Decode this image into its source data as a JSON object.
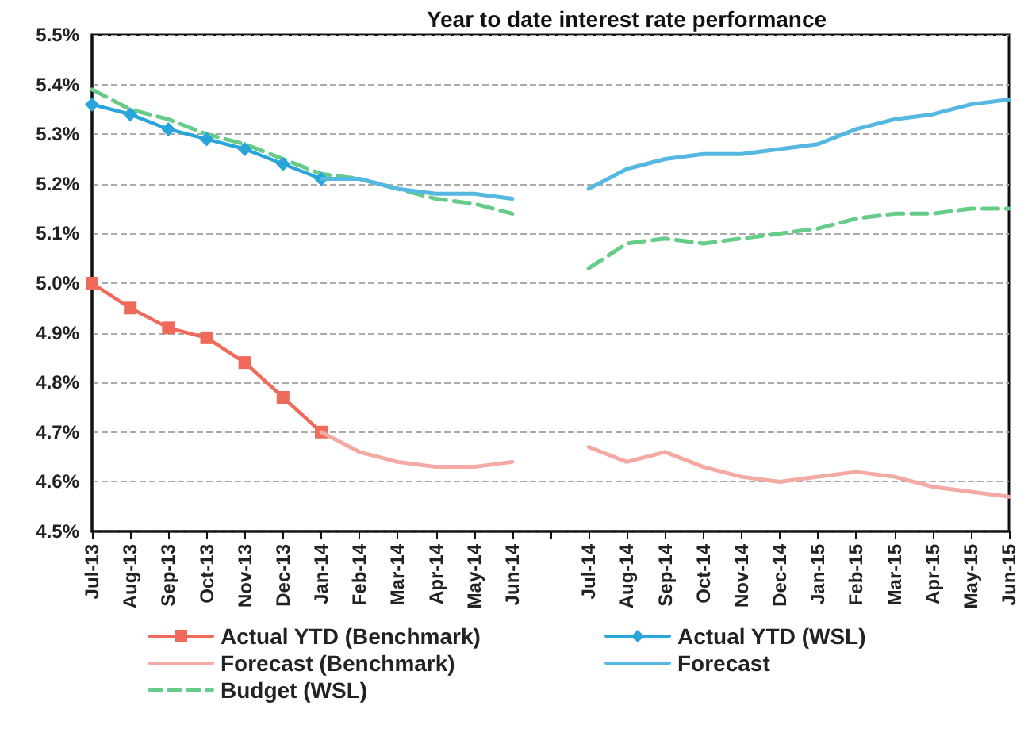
{
  "chart_data": {
    "type": "line",
    "title": "Year to date interest rate performance",
    "categories": [
      "Jul-13",
      "Aug-13",
      "Sep-13",
      "Oct-13",
      "Nov-13",
      "Dec-13",
      "Jan-14",
      "Feb-14",
      "Mar-14",
      "Apr-14",
      "May-14",
      "Jun-14",
      null,
      "Jul-14",
      "Aug-14",
      "Sep-14",
      "Oct-14",
      "Nov-14",
      "Dec-14",
      "Jan-15",
      "Feb-15",
      "Mar-15",
      "Apr-15",
      "May-15",
      "Jun-15"
    ],
    "series": [
      {
        "name": "Actual YTD (Benchmark)",
        "color": "#ef6a5a",
        "marker": "square",
        "values": [
          5.0,
          4.95,
          4.91,
          4.89,
          4.84,
          4.77,
          4.7,
          null,
          null,
          null,
          null,
          null,
          null,
          null,
          null,
          null,
          null,
          null,
          null,
          null,
          null,
          null,
          null,
          null,
          null
        ]
      },
      {
        "name": "Forecast (Benchmark)",
        "color": "#f3aaa2",
        "values": [
          null,
          null,
          null,
          null,
          null,
          null,
          4.7,
          4.66,
          4.64,
          4.63,
          4.63,
          4.64,
          null,
          4.67,
          4.64,
          4.66,
          4.63,
          4.61,
          4.6,
          4.61,
          4.62,
          4.61,
          4.59,
          4.58,
          4.57
        ]
      },
      {
        "name": "Budget (WSL)",
        "color": "#66cc88",
        "line_style": "dashed",
        "values": [
          5.39,
          5.35,
          5.33,
          5.3,
          5.28,
          5.25,
          5.22,
          5.21,
          5.19,
          5.17,
          5.16,
          5.14,
          null,
          5.03,
          5.08,
          5.09,
          5.08,
          5.09,
          5.1,
          5.11,
          5.13,
          5.14,
          5.14,
          5.15,
          5.15
        ]
      },
      {
        "name": "Actual YTD (WSL)",
        "color": "#2aa5dc",
        "marker": "diamond",
        "values": [
          5.36,
          5.34,
          5.31,
          5.29,
          5.27,
          5.24,
          5.21,
          null,
          null,
          null,
          null,
          null,
          null,
          null,
          null,
          null,
          null,
          null,
          null,
          null,
          null,
          null,
          null,
          null,
          null
        ]
      },
      {
        "name": "Forecast",
        "color": "#55b8e0",
        "values": [
          null,
          null,
          null,
          null,
          null,
          null,
          5.21,
          5.21,
          5.19,
          5.18,
          5.18,
          5.17,
          null,
          5.19,
          5.23,
          5.25,
          5.26,
          5.26,
          5.27,
          5.28,
          5.31,
          5.33,
          5.34,
          5.36,
          5.37
        ]
      }
    ],
    "ylim": [
      4.5,
      5.5
    ],
    "yticks": [
      {
        "value": 4.5,
        "label": "4.5%"
      },
      {
        "value": 4.6,
        "label": "4.6%"
      },
      {
        "value": 4.7,
        "label": "4.7%"
      },
      {
        "value": 4.8,
        "label": "4.8%"
      },
      {
        "value": 4.9,
        "label": "4.9%"
      },
      {
        "value": 5.0,
        "label": "5.0%"
      },
      {
        "value": 5.1,
        "label": "5.1%"
      },
      {
        "value": 5.2,
        "label": "5.2%"
      },
      {
        "value": 5.3,
        "label": "5.3%"
      },
      {
        "value": 5.4,
        "label": "5.4%"
      },
      {
        "value": 5.5,
        "label": "5.5%"
      }
    ],
    "grid": "y",
    "legend": "bottom"
  }
}
